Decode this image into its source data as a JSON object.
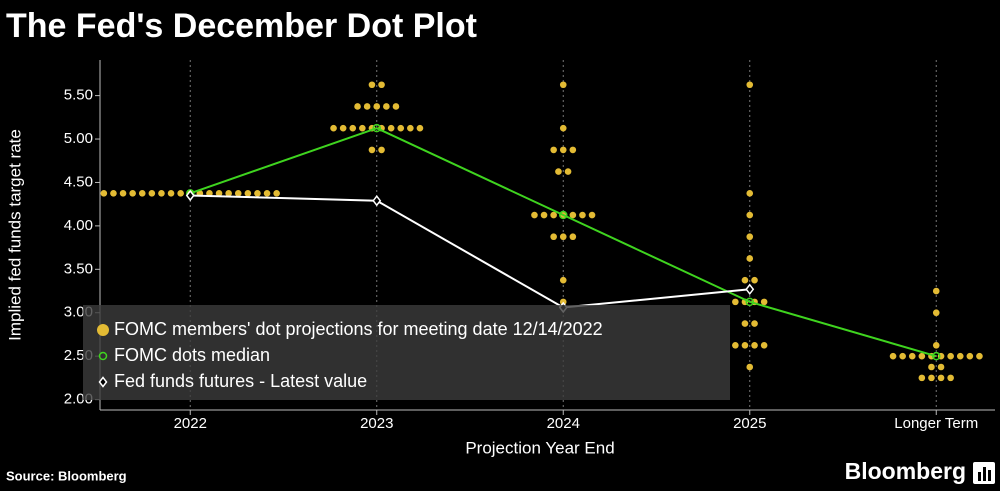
{
  "chart_data": {
    "type": "dotplot",
    "title": "The Fed's December Dot Plot",
    "x_label": "Projection Year End",
    "y_label": "Implied fed funds target rate",
    "source": "Source: Bloomberg",
    "brand": "Bloomberg",
    "categories": [
      "2022",
      "2023",
      "2024",
      "2025",
      "Longer Term"
    ],
    "ylim": [
      1.88,
      5.91
    ],
    "yticks": [
      {
        "value": 2.0,
        "label": "2.00"
      },
      {
        "value": 2.5,
        "label": "2.50"
      },
      {
        "value": 3.0,
        "label": "3.00"
      },
      {
        "value": 3.5,
        "label": "3.50"
      },
      {
        "value": 4.0,
        "label": "4.00"
      },
      {
        "value": 4.5,
        "label": "4.50"
      },
      {
        "value": 5.0,
        "label": "5.00"
      },
      {
        "value": 5.5,
        "label": "5.50"
      }
    ],
    "grid": true,
    "legend": "bottom-left",
    "series": [
      {
        "name": "FOMC members' dot projections for meeting date 12/14/2022",
        "color": "#e3bb34",
        "marker": "dot",
        "values": [
          [
            4.375,
            4.375,
            4.375,
            4.375,
            4.375,
            4.375,
            4.375,
            4.375,
            4.375,
            4.375,
            4.375,
            4.375,
            4.375,
            4.375,
            4.375,
            4.375,
            4.375,
            4.375,
            4.375
          ],
          [
            5.625,
            5.625,
            5.375,
            5.375,
            5.375,
            5.375,
            5.375,
            5.125,
            5.125,
            5.125,
            5.125,
            5.125,
            5.125,
            5.125,
            5.125,
            5.125,
            5.125,
            4.875,
            4.875
          ],
          [
            5.625,
            5.125,
            4.875,
            4.875,
            4.875,
            4.625,
            4.625,
            4.125,
            4.125,
            4.125,
            4.125,
            4.125,
            4.125,
            4.125,
            3.875,
            3.875,
            3.875,
            3.375,
            3.125
          ],
          [
            5.625,
            4.375,
            4.125,
            3.875,
            3.625,
            3.375,
            3.375,
            3.125,
            3.125,
            3.125,
            3.125,
            2.875,
            2.875,
            2.625,
            2.625,
            2.625,
            2.625,
            2.375
          ],
          [
            3.25,
            3.0,
            2.625,
            2.5,
            2.5,
            2.5,
            2.5,
            2.5,
            2.5,
            2.5,
            2.5,
            2.5,
            2.5,
            2.375,
            2.375,
            2.25,
            2.25,
            2.25,
            2.25
          ]
        ]
      },
      {
        "name": "FOMC dots median",
        "color": "#3fd41f",
        "marker": "circle",
        "values": [
          4.375,
          5.125,
          4.125,
          3.125,
          2.5
        ]
      },
      {
        "name": "Fed funds futures - Latest value",
        "color": "#ffffff",
        "marker": "diamond",
        "values": [
          4.35,
          4.29,
          3.06,
          3.27,
          null
        ]
      }
    ]
  }
}
